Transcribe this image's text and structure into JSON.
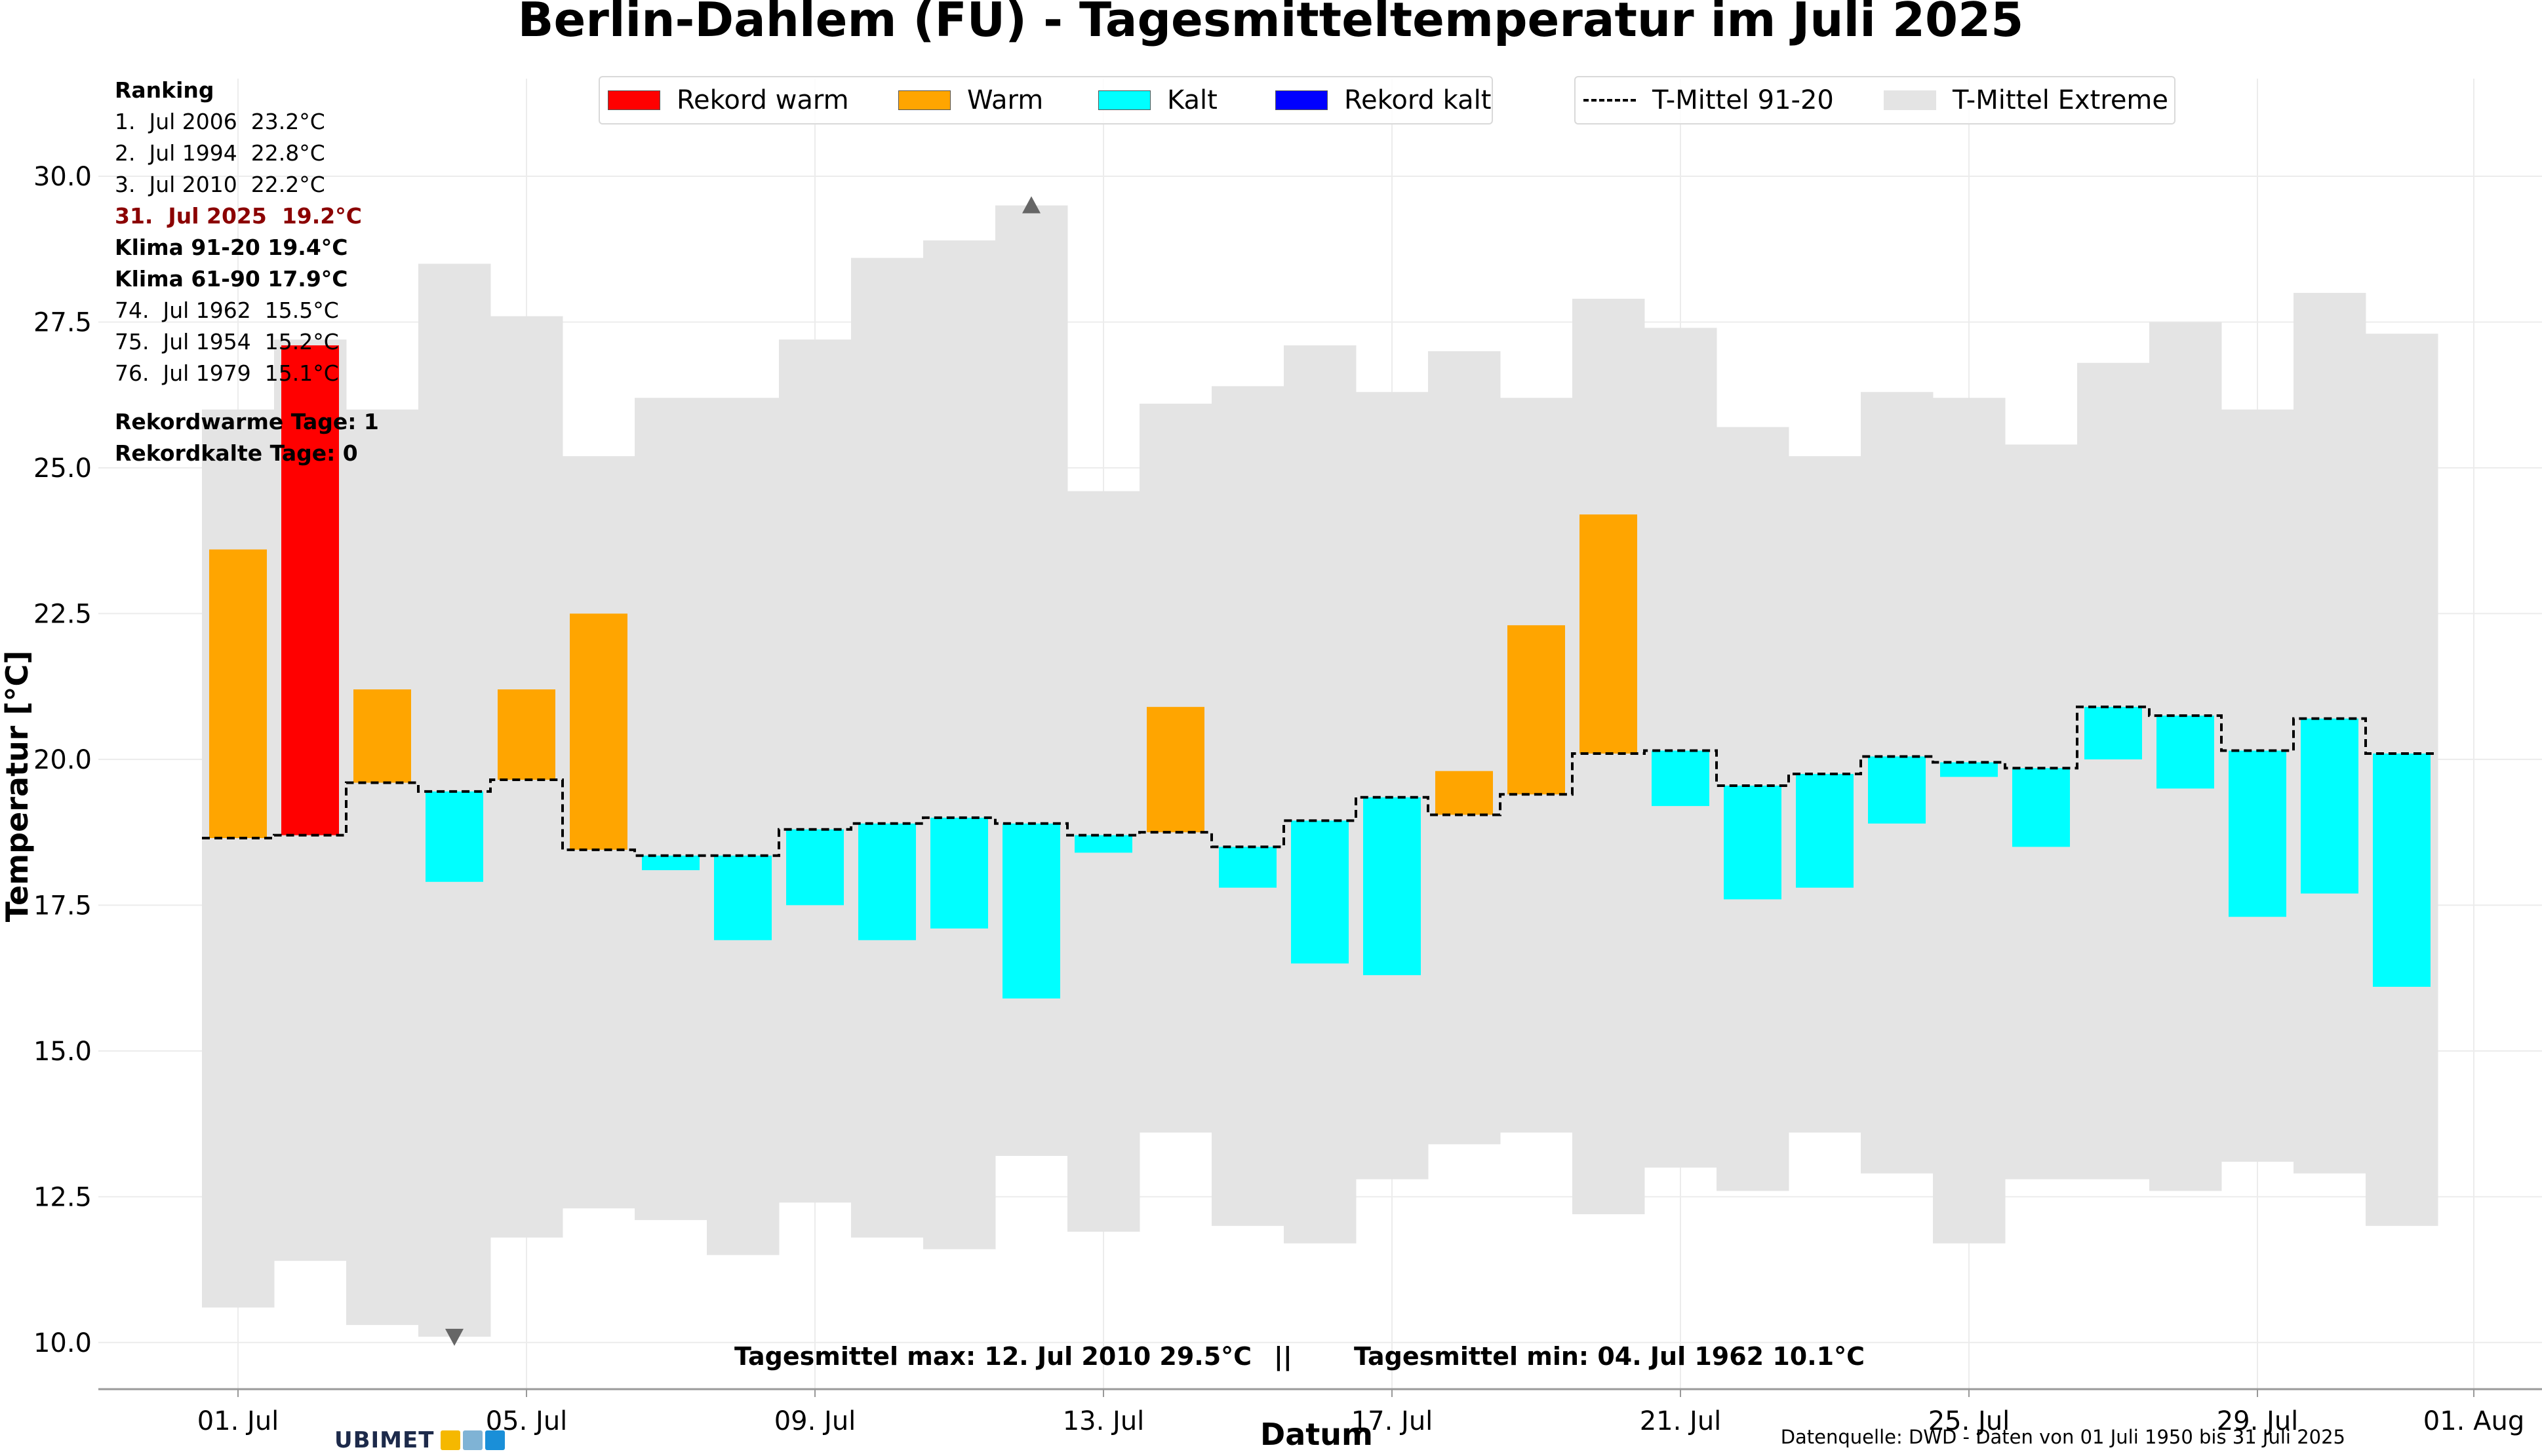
{
  "title": "Berlin-Dahlem (FU) - Tagesmitteltemperatur im Juli 2025",
  "ranking": {
    "header": "Ranking",
    "lines": [
      {
        "text": "1.  Jul 2006  23.2°C",
        "style": "normal"
      },
      {
        "text": "2.  Jul 1994  22.8°C",
        "style": "normal"
      },
      {
        "text": "3.  Jul 2010  22.2°C",
        "style": "normal"
      },
      {
        "text": "31.  Jul 2025  19.2°C",
        "style": "current"
      },
      {
        "text": "Klima 91-20 19.4°C",
        "style": "bold"
      },
      {
        "text": "Klima 61-90 17.9°C",
        "style": "bold"
      },
      {
        "text": "74.  Jul 1962  15.5°C",
        "style": "normal"
      },
      {
        "text": "75.  Jul 1954  15.2°C",
        "style": "normal"
      },
      {
        "text": "76.  Jul 1979  15.1°C",
        "style": "normal"
      }
    ],
    "record_warm_days": "Rekordwarme Tage: 1",
    "record_cold_days": "Rekordkalte Tage: 0"
  },
  "legend": {
    "items": [
      {
        "label": "Rekord warm",
        "color": "#ff0000"
      },
      {
        "label": "Warm",
        "color": "#ffa500"
      },
      {
        "label": "Kalt",
        "color": "#00ffff"
      },
      {
        "label": "Rekord kalt",
        "color": "#0000ff"
      }
    ],
    "mean_label": "T-Mittel 91-20",
    "extremes_label": "T-Mittel Extreme",
    "extremes_color": "#e4e4e4"
  },
  "footer": {
    "max_text": "Tagesmittel max: 12. Jul 2010 29.5°C",
    "separator": "||",
    "min_text": "Tagesmittel min: 04. Jul 1962 10.1°C",
    "source": "Datenquelle: DWD - Daten von 01 Juli 1950 bis 31 Juli 2025",
    "logo_text": "UBIMET"
  },
  "chart_data": {
    "type": "bar",
    "x_unit": "day of July 2025",
    "xlabel": "Datum",
    "ylabel": "Temperatur [°C]",
    "ylim": [
      9.2,
      31.0
    ],
    "yticks": [
      "10.0",
      "12.5",
      "15.0",
      "17.5",
      "20.0",
      "22.5",
      "25.0",
      "27.5",
      "30.0"
    ],
    "xticks": [
      {
        "day": 1,
        "label": "01. Jul"
      },
      {
        "day": 5,
        "label": "05. Jul"
      },
      {
        "day": 9,
        "label": "09. Jul"
      },
      {
        "day": 13,
        "label": "13. Jul"
      },
      {
        "day": 17,
        "label": "17. Jul"
      },
      {
        "day": 21,
        "label": "21. Jul"
      },
      {
        "day": 25,
        "label": "25. Jul"
      },
      {
        "day": 29,
        "label": "29. Jul"
      },
      {
        "day": 32,
        "label": "01. Aug"
      }
    ],
    "grid": true,
    "days": [
      1,
      2,
      3,
      4,
      5,
      6,
      7,
      8,
      9,
      10,
      11,
      12,
      13,
      14,
      15,
      16,
      17,
      18,
      19,
      20,
      21,
      22,
      23,
      24,
      25,
      26,
      27,
      28,
      29,
      30,
      31
    ],
    "tmean_2025": [
      23.6,
      27.1,
      21.2,
      17.9,
      21.2,
      22.5,
      18.1,
      16.9,
      17.5,
      16.9,
      17.1,
      15.9,
      18.4,
      20.9,
      17.8,
      16.5,
      16.3,
      19.8,
      22.3,
      24.2,
      19.2,
      17.6,
      17.8,
      18.9,
      19.7,
      18.5,
      20.0,
      19.5,
      17.3,
      17.7,
      16.1
    ],
    "climate_mean_91_20": [
      18.65,
      18.7,
      19.6,
      19.45,
      19.65,
      18.45,
      18.35,
      18.35,
      18.8,
      18.9,
      19.0,
      18.9,
      18.7,
      18.75,
      18.5,
      18.95,
      19.35,
      19.05,
      19.4,
      20.1,
      20.15,
      19.55,
      19.75,
      20.05,
      19.95,
      19.85,
      20.9,
      20.75,
      20.15,
      20.7,
      20.1
    ],
    "extreme_max": [
      26.0,
      27.2,
      26.0,
      28.5,
      27.6,
      25.2,
      26.2,
      26.2,
      27.2,
      28.6,
      28.9,
      29.5,
      24.6,
      26.1,
      26.4,
      27.1,
      26.3,
      27.0,
      26.2,
      27.9,
      27.4,
      25.7,
      25.2,
      26.3,
      26.2,
      25.4,
      26.8,
      27.5,
      26.0,
      28.0,
      27.3
    ],
    "extreme_min": [
      10.6,
      11.4,
      10.3,
      10.1,
      11.8,
      12.3,
      12.1,
      11.5,
      12.4,
      11.8,
      11.6,
      13.2,
      11.9,
      13.6,
      12.0,
      11.7,
      12.8,
      13.4,
      13.6,
      12.2,
      13.0,
      12.6,
      13.6,
      12.9,
      11.7,
      12.8,
      12.8,
      12.6,
      13.1,
      12.9,
      12.0
    ],
    "categories": [
      "Rekord warm",
      "Warm",
      "Kalt",
      "Rekord kalt"
    ],
    "category_per_day": [
      "Warm",
      "Rekord warm",
      "Warm",
      "Kalt",
      "Warm",
      "Warm",
      "Kalt",
      "Kalt",
      "Kalt",
      "Kalt",
      "Kalt",
      "Kalt",
      "Kalt",
      "Warm",
      "Kalt",
      "Kalt",
      "Kalt",
      "Warm",
      "Warm",
      "Warm",
      "Kalt",
      "Kalt",
      "Kalt",
      "Kalt",
      "Kalt",
      "Kalt",
      "Kalt",
      "Kalt",
      "Kalt",
      "Kalt",
      "Kalt"
    ],
    "max_marker": {
      "day": 12,
      "value": 29.5
    },
    "min_marker": {
      "day": 4,
      "value": 10.1
    }
  }
}
